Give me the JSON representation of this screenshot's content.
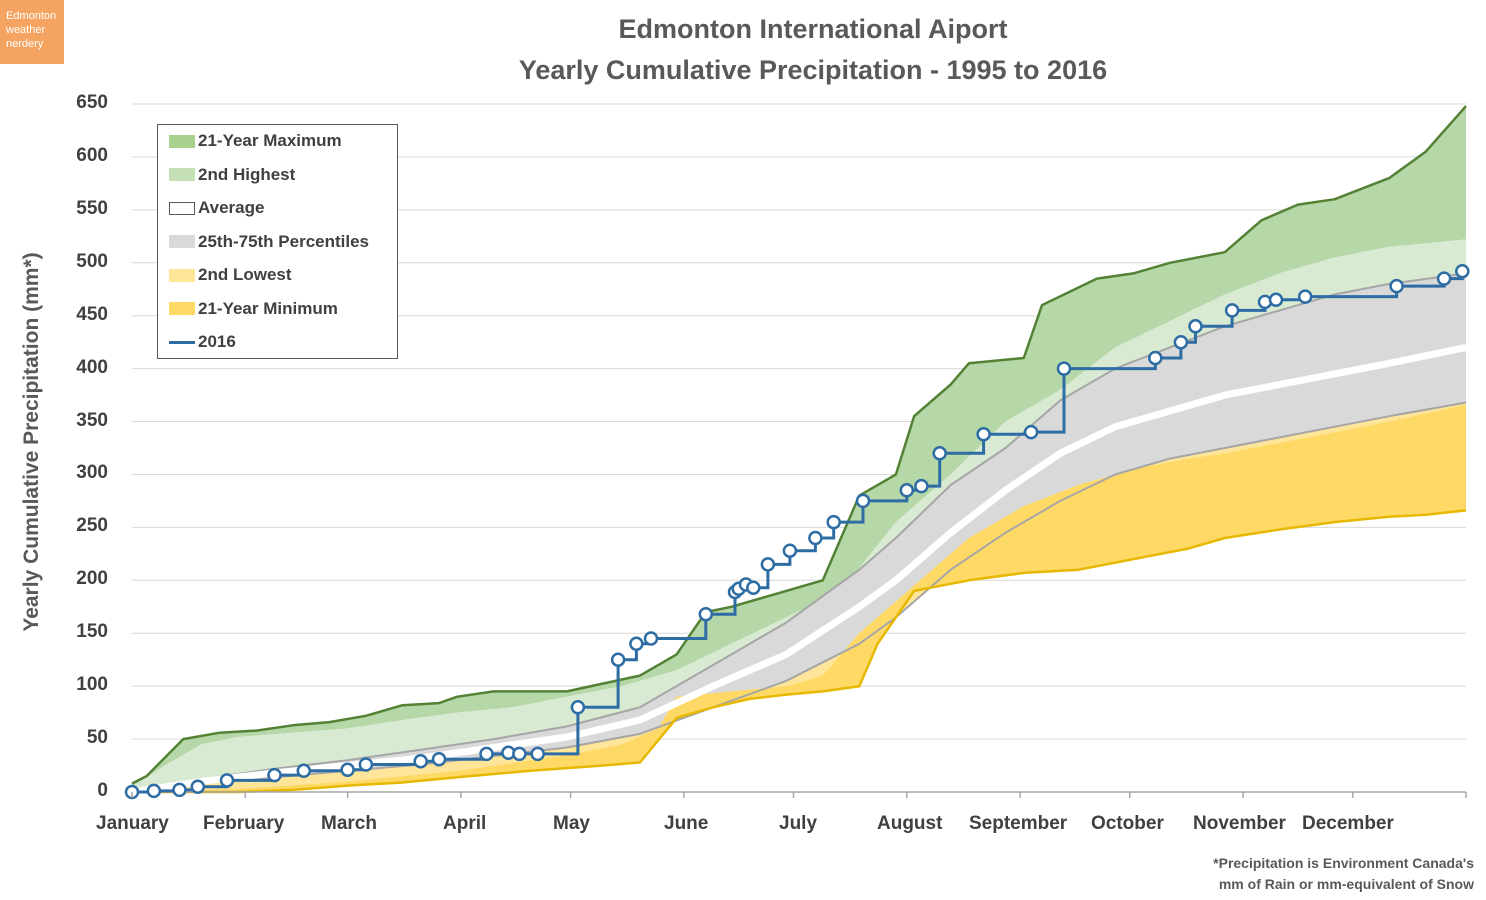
{
  "brand": {
    "lines": [
      "Edmonton",
      "weather",
      "nerdery"
    ]
  },
  "chart_data": {
    "type": "area",
    "title": "Edmonton International Aiport",
    "subtitle": "Yearly Cumulative Precipitation - 1995 to 2016",
    "ylabel": "Yearly Cumulative Precipitation (mm*)",
    "xlabel": "",
    "ylim": [
      0,
      650
    ],
    "xlim": [
      1,
      366
    ],
    "yticks": [
      "650",
      "600",
      "550",
      "500",
      "450",
      "400",
      "350",
      "300",
      "250",
      "200",
      "150",
      "100",
      "50",
      "0"
    ],
    "month_labels": [
      "January",
      "February",
      "March",
      "April",
      "May",
      "June",
      "July",
      "August",
      "September",
      "October",
      "November",
      "December"
    ],
    "grid": true,
    "legend_position": "top-left",
    "note_lines": [
      "*Precipitation is Environment Canada's",
      "mm of Rain or mm-equivalent of Snow"
    ],
    "colors": {
      "max": "#b6d7a8",
      "max_line": "#548235",
      "second_high": "#d9ead3",
      "pct": "#d9d9d9",
      "pct_line": "#a6a6a6",
      "second_low": "#ffe599",
      "min": "#ffd966",
      "min_line": "#e6b800",
      "avg": "#ffffff",
      "s2016": "#2e6da4"
    },
    "series": [
      {
        "name": "21-Year Maximum",
        "day": [
          1,
          5,
          15,
          25,
          35,
          45,
          55,
          65,
          75,
          85,
          90,
          100,
          120,
          140,
          150,
          158,
          165,
          170,
          180,
          190,
          200,
          210,
          215,
          225,
          230,
          245,
          250,
          265,
          275,
          285,
          300,
          310,
          320,
          330,
          345,
          355,
          366
        ],
        "values": [
          8,
          15,
          50,
          56,
          58,
          63,
          66,
          72,
          82,
          84,
          90,
          95,
          95,
          110,
          130,
          170,
          175,
          180,
          190,
          200,
          280,
          300,
          355,
          385,
          405,
          410,
          460,
          485,
          490,
          500,
          510,
          540,
          555,
          560,
          580,
          605,
          648
        ]
      },
      {
        "name": "2nd Highest",
        "day": [
          1,
          10,
          20,
          30,
          45,
          60,
          75,
          90,
          105,
          120,
          135,
          150,
          165,
          180,
          195,
          210,
          225,
          240,
          255,
          270,
          285,
          300,
          315,
          330,
          345,
          366
        ],
        "values": [
          5,
          25,
          45,
          52,
          56,
          60,
          68,
          75,
          80,
          90,
          100,
          115,
          140,
          165,
          190,
          255,
          300,
          350,
          380,
          420,
          445,
          470,
          490,
          505,
          515,
          522
        ]
      },
      {
        "name": "75th Percentile",
        "day": [
          1,
          20,
          40,
          60,
          80,
          100,
          120,
          140,
          160,
          180,
          200,
          210,
          225,
          240,
          255,
          270,
          285,
          300,
          315,
          330,
          345,
          366
        ],
        "values": [
          0,
          12,
          22,
          30,
          40,
          50,
          62,
          80,
          120,
          160,
          210,
          240,
          290,
          325,
          370,
          400,
          420,
          440,
          455,
          470,
          480,
          490
        ]
      },
      {
        "name": "Average",
        "day": [
          1,
          20,
          40,
          60,
          80,
          100,
          120,
          140,
          160,
          180,
          200,
          210,
          225,
          240,
          255,
          270,
          285,
          300,
          315,
          330,
          345,
          366
        ],
        "values": [
          0,
          10,
          18,
          25,
          32,
          42,
          52,
          68,
          100,
          130,
          175,
          200,
          245,
          285,
          320,
          345,
          360,
          375,
          385,
          395,
          405,
          420
        ]
      },
      {
        "name": "25th Percentile",
        "day": [
          1,
          20,
          40,
          60,
          80,
          100,
          120,
          140,
          160,
          180,
          200,
          210,
          225,
          240,
          255,
          270,
          285,
          300,
          315,
          330,
          345,
          366
        ],
        "values": [
          0,
          8,
          14,
          20,
          26,
          34,
          42,
          55,
          80,
          105,
          140,
          165,
          210,
          245,
          275,
          300,
          315,
          325,
          335,
          345,
          355,
          368
        ]
      },
      {
        "name": "2nd Lowest",
        "day": [
          1,
          30,
          60,
          90,
          120,
          135,
          145,
          150,
          180,
          190,
          200,
          215,
          230,
          245,
          260,
          275,
          290,
          300,
          315,
          330,
          345,
          366
        ],
        "values": [
          0,
          3,
          10,
          20,
          35,
          45,
          60,
          90,
          100,
          110,
          150,
          195,
          240,
          270,
          290,
          305,
          315,
          320,
          330,
          340,
          350,
          366
        ]
      },
      {
        "name": "21-Year Minimum",
        "day": [
          1,
          30,
          45,
          60,
          75,
          90,
          110,
          130,
          140,
          150,
          160,
          170,
          180,
          190,
          200,
          205,
          215,
          230,
          245,
          260,
          275,
          290,
          300,
          315,
          330,
          345,
          355,
          366
        ],
        "values": [
          0,
          0,
          2,
          6,
          9,
          14,
          20,
          25,
          28,
          70,
          80,
          88,
          92,
          95,
          100,
          140,
          190,
          200,
          207,
          210,
          220,
          230,
          240,
          248,
          255,
          260,
          262,
          266
        ]
      },
      {
        "name": "2016",
        "day": [
          1,
          7,
          14,
          19,
          27,
          40,
          48,
          60,
          65,
          80,
          85,
          98,
          104,
          107,
          112,
          123,
          134,
          139,
          143,
          158,
          166,
          167,
          169,
          171,
          175,
          181,
          188,
          193,
          201,
          213,
          217,
          222,
          234,
          247,
          256,
          281,
          288,
          292,
          302,
          311,
          314,
          322,
          347,
          360,
          365
        ],
        "values": [
          0,
          1,
          2,
          5,
          11,
          16,
          20,
          21,
          26,
          29,
          31,
          36,
          37,
          36,
          36,
          80,
          125,
          140,
          145,
          168,
          189,
          192,
          196,
          193,
          215,
          228,
          240,
          255,
          275,
          285,
          289,
          320,
          338,
          340,
          400,
          410,
          425,
          440,
          455,
          463,
          465,
          468,
          478,
          485,
          492
        ]
      }
    ]
  },
  "legend": {
    "items": [
      {
        "label": "21-Year Maximum",
        "kind": "fill",
        "color": "#a9d18e",
        "border": "#a9d18e"
      },
      {
        "label": "2nd Highest",
        "kind": "fill",
        "color": "#c5e0b4",
        "border": "#c5e0b4"
      },
      {
        "label": "Average",
        "kind": "fill",
        "color": "#ffffff",
        "border": "#595959"
      },
      {
        "label": "25th-75th Percentiles",
        "kind": "fill",
        "color": "#d9d9d9",
        "border": "#d9d9d9"
      },
      {
        "label": "2nd Lowest",
        "kind": "fill",
        "color": "#ffe699",
        "border": "#ffe699"
      },
      {
        "label": "21-Year Minimum",
        "kind": "fill",
        "color": "#ffd966",
        "border": "#ffd966"
      },
      {
        "label": "2016",
        "kind": "line",
        "color": "#2e6da4",
        "border": "#2e6da4"
      }
    ]
  }
}
